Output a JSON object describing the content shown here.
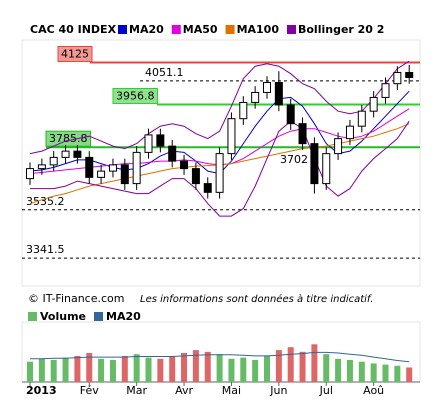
{
  "chart_data": {
    "type": "candlestick",
    "title": "CAC 40 INDEX",
    "categories": [
      "2013",
      null,
      null,
      null,
      null,
      "Fév",
      null,
      null,
      null,
      "Mar",
      null,
      null,
      null,
      "Avr",
      null,
      null,
      null,
      "Mai",
      null,
      null,
      null,
      "Jun",
      null,
      null,
      null,
      "Jul",
      null,
      null,
      null,
      "Aoû",
      null,
      null,
      null
    ],
    "open": [
      3660,
      3700,
      3715,
      3745,
      3770,
      3745,
      3665,
      3690,
      3715,
      3640,
      3765,
      3835,
      3790,
      3730,
      3700,
      3640,
      3605,
      3760,
      3900,
      3965,
      4005,
      4045,
      3955,
      3880,
      3800,
      3640,
      3760,
      3820,
      3870,
      3930,
      3985,
      4040,
      4085
    ],
    "high": [
      3725,
      3740,
      3770,
      3795,
      3795,
      3770,
      3715,
      3740,
      3740,
      3790,
      3860,
      3860,
      3815,
      3755,
      3725,
      3665,
      3785,
      3925,
      3990,
      4030,
      4070,
      4090,
      3980,
      3905,
      3825,
      3785,
      3845,
      3895,
      3955,
      4010,
      4065,
      4110,
      4115
    ],
    "low": [
      3635,
      3675,
      3690,
      3720,
      3720,
      3640,
      3640,
      3665,
      3615,
      3615,
      3740,
      3765,
      3705,
      3675,
      3615,
      3580,
      3580,
      3735,
      3875,
      3940,
      3980,
      3930,
      3855,
      3775,
      3600,
      3615,
      3735,
      3795,
      3845,
      3905,
      3960,
      4015,
      4040
    ],
    "close": [
      3700,
      3715,
      3745,
      3770,
      3745,
      3665,
      3690,
      3715,
      3640,
      3765,
      3835,
      3790,
      3730,
      3700,
      3640,
      3605,
      3760,
      3900,
      3965,
      4005,
      4045,
      3955,
      3880,
      3800,
      3640,
      3760,
      3820,
      3870,
      3930,
      3985,
      4040,
      4085,
      4065
    ],
    "series": [
      {
        "name": "MA20",
        "color": "#0000cc",
        "values": [
          3690,
          3695,
          3705,
          3720,
          3735,
          3735,
          3720,
          3705,
          3695,
          3700,
          3720,
          3750,
          3770,
          3765,
          3730,
          3690,
          3680,
          3730,
          3800,
          3870,
          3930,
          3980,
          3985,
          3950,
          3880,
          3800,
          3760,
          3770,
          3810,
          3860,
          3910,
          3960,
          4010
        ]
      },
      {
        "name": "MA50",
        "color": "#e000e0",
        "values": [
          3680,
          3685,
          3690,
          3695,
          3700,
          3705,
          3710,
          3715,
          3720,
          3720,
          3725,
          3730,
          3730,
          3735,
          3730,
          3720,
          3715,
          3720,
          3740,
          3770,
          3800,
          3830,
          3850,
          3860,
          3860,
          3845,
          3830,
          3820,
          3830,
          3850,
          3880,
          3910,
          3940
        ]
      },
      {
        "name": "MA100",
        "color": "#e07000",
        "values": [
          3560,
          3575,
          3590,
          3600,
          3615,
          3630,
          3640,
          3650,
          3660,
          3670,
          3680,
          3690,
          3700,
          3705,
          3710,
          3712,
          3715,
          3720,
          3730,
          3740,
          3750,
          3760,
          3770,
          3780,
          3785,
          3790,
          3800,
          3810,
          3820,
          3830,
          3845,
          3860,
          3880
        ]
      },
      {
        "name": "Bollinger 20 2",
        "color": "#8000a0",
        "upper": [
          3760,
          3770,
          3790,
          3810,
          3820,
          3830,
          3810,
          3790,
          3780,
          3800,
          3840,
          3870,
          3880,
          3870,
          3840,
          3820,
          3850,
          3950,
          4060,
          4110,
          4120,
          4110,
          4080,
          4040,
          4020,
          3970,
          3930,
          3920,
          3930,
          3980,
          4040,
          4100,
          4130
        ],
        "lower": [
          3620,
          3620,
          3620,
          3630,
          3650,
          3640,
          3630,
          3620,
          3610,
          3600,
          3600,
          3630,
          3660,
          3660,
          3620,
          3560,
          3510,
          3510,
          3540,
          3630,
          3740,
          3850,
          3890,
          3860,
          3740,
          3630,
          3590,
          3620,
          3690,
          3740,
          3780,
          3820,
          3890
        ]
      }
    ],
    "ylim": [
      3230,
      4215
    ],
    "levels": [
      {
        "value": 4125,
        "color": "#e8453c",
        "box": true,
        "line": "solid"
      },
      {
        "value": 4051.1,
        "line": "dashed"
      },
      {
        "value": 3956.8,
        "color": "#33cc33",
        "box": true,
        "line": "solid"
      },
      {
        "value": 3785.8,
        "color": "#22bb22",
        "box": true,
        "line": "solid"
      },
      {
        "value": 3702
      },
      {
        "value": 3535.2,
        "line": "dashed"
      },
      {
        "value": 3341.5,
        "line": "dashed"
      }
    ],
    "annotations": [
      "© IT-Finance.com",
      "Les informations sont données à titre indicatif."
    ],
    "volume": {
      "name": "Volume",
      "color": "#66bb66",
      "down_color": "#dd6666",
      "values": [
        35,
        40,
        38,
        42,
        45,
        50,
        40,
        38,
        45,
        48,
        42,
        40,
        44,
        50,
        55,
        52,
        48,
        40,
        42,
        38,
        45,
        55,
        60,
        52,
        65,
        48,
        40,
        38,
        35,
        32,
        30,
        28,
        25
      ],
      "ylim": [
        0,
        100
      ],
      "ma": {
        "name": "MA20",
        "color": "#336699",
        "values": [
          40,
          40,
          41,
          41,
          42,
          43,
          43,
          43,
          43,
          44,
          44,
          44,
          44,
          45,
          46,
          47,
          47,
          47,
          46,
          45,
          45,
          46,
          48,
          49,
          51,
          51,
          50,
          48,
          46,
          43,
          40,
          37,
          35
        ]
      }
    }
  }
}
